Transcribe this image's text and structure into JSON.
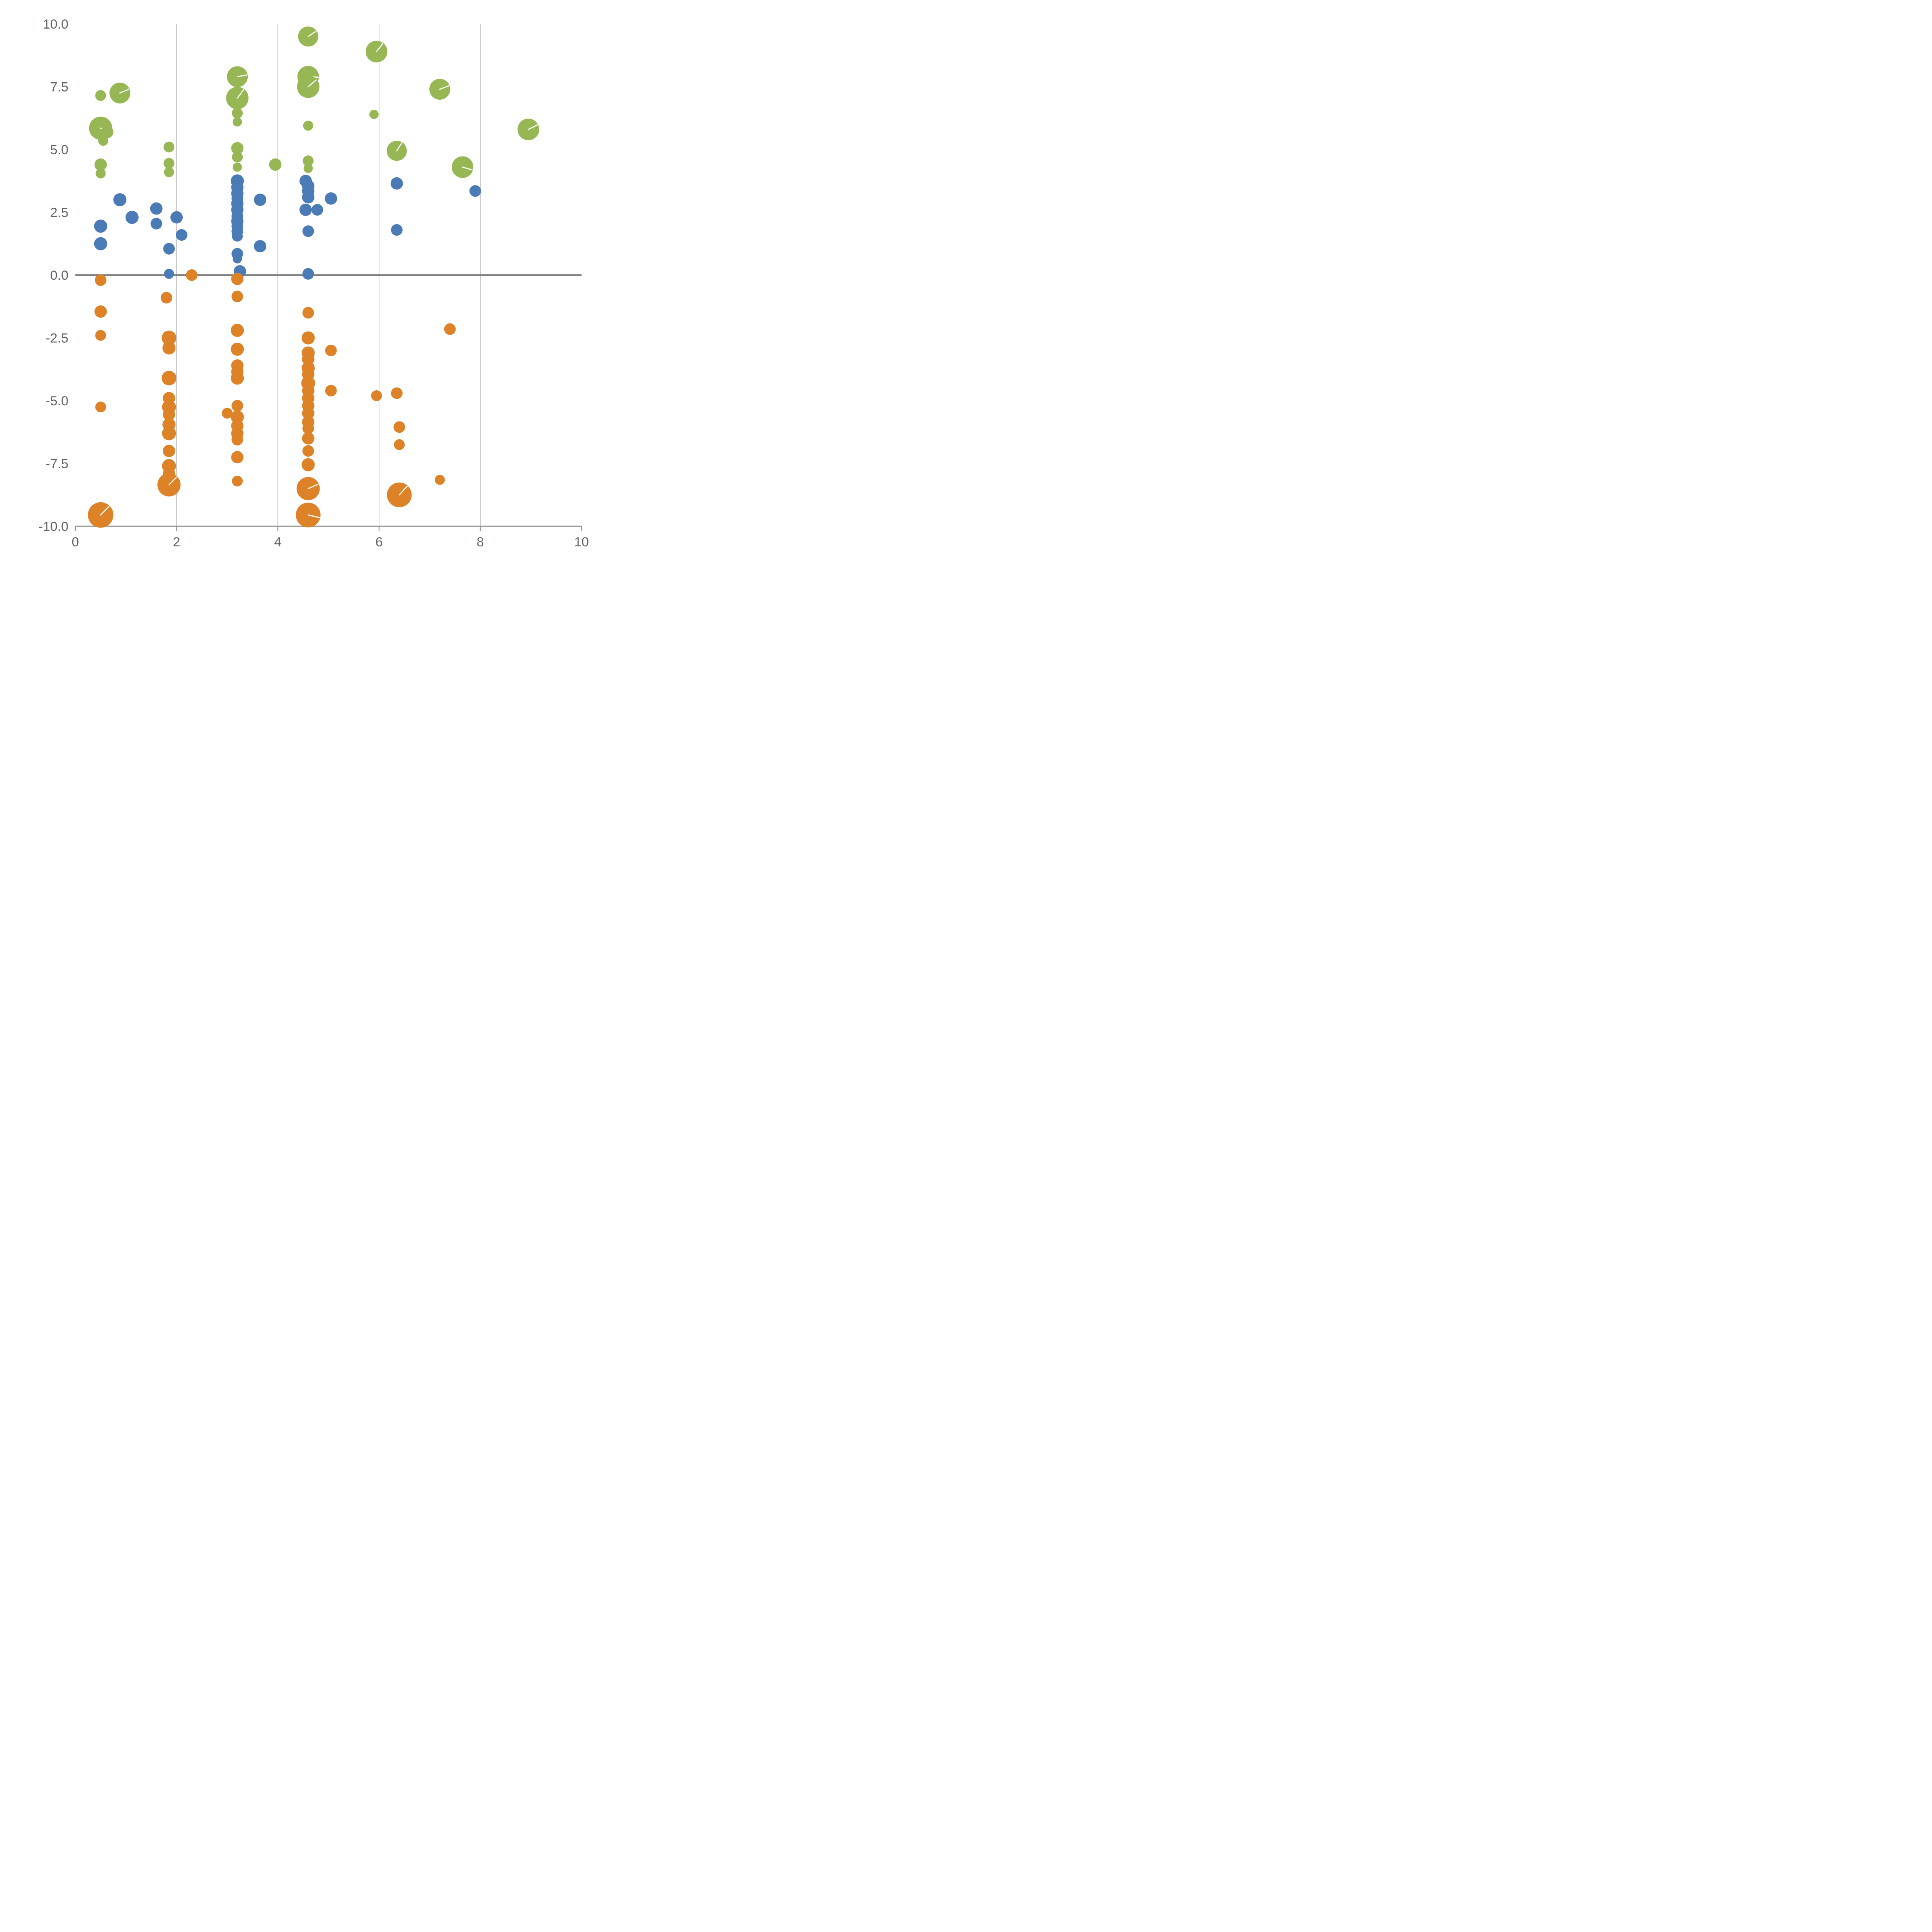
{
  "chart_data": {
    "type": "scatter",
    "title": "",
    "xlabel": "",
    "ylabel": "",
    "xlim": [
      0,
      10
    ],
    "ylim": [
      -10,
      10
    ],
    "grid": "vertical-only",
    "legend": "none",
    "x_ticks": [
      {
        "value": 0,
        "label": "0"
      },
      {
        "value": 2,
        "label": "2"
      },
      {
        "value": 4,
        "label": "4"
      },
      {
        "value": 6,
        "label": "6"
      },
      {
        "value": 8,
        "label": "8"
      },
      {
        "value": 10,
        "label": "10"
      }
    ],
    "y_ticks": [
      {
        "value": -10,
        "label": "-10.0"
      },
      {
        "value": -7.5,
        "label": "-7.5"
      },
      {
        "value": -5,
        "label": "-5.0"
      },
      {
        "value": -2.5,
        "label": "-2.5"
      },
      {
        "value": 0,
        "label": "0.0"
      },
      {
        "value": 2.5,
        "label": "2.5"
      },
      {
        "value": 5,
        "label": "5.0"
      },
      {
        "value": 7.5,
        "label": "7.5"
      },
      {
        "value": 10,
        "label": "10.0"
      }
    ],
    "vertical_gridlines_at": [
      2,
      4,
      6,
      8
    ],
    "zero_line": {
      "y": 0,
      "color": "#808080"
    },
    "colors": {
      "axis": "#9a9a9a",
      "grid": "#c9c9c9",
      "tick_text": "#5f6368",
      "background": "#ffffff"
    },
    "point_format": "[x, y, marker_radius_px]",
    "series": [
      {
        "name": "green",
        "color": "#96b754",
        "points": [
          [
            0.5,
            7.15,
            14
          ],
          [
            0.88,
            7.25,
            27
          ],
          [
            0.5,
            5.85,
            30
          ],
          [
            0.63,
            5.7,
            16
          ],
          [
            0.55,
            5.35,
            13
          ],
          [
            0.5,
            4.4,
            16
          ],
          [
            0.5,
            4.05,
            13
          ],
          [
            1.85,
            5.1,
            14
          ],
          [
            1.85,
            4.45,
            14
          ],
          [
            1.85,
            4.1,
            13
          ],
          [
            3.2,
            7.9,
            27
          ],
          [
            3.2,
            7.05,
            29
          ],
          [
            3.2,
            6.45,
            14
          ],
          [
            3.2,
            6.1,
            12
          ],
          [
            3.2,
            5.05,
            16
          ],
          [
            3.2,
            4.7,
            14
          ],
          [
            3.2,
            4.3,
            12
          ],
          [
            3.95,
            4.4,
            16
          ],
          [
            4.6,
            9.5,
            26
          ],
          [
            4.6,
            7.9,
            28
          ],
          [
            4.6,
            7.5,
            29
          ],
          [
            4.6,
            5.95,
            13
          ],
          [
            4.6,
            4.55,
            14
          ],
          [
            4.6,
            4.25,
            12
          ],
          [
            5.95,
            8.9,
            28
          ],
          [
            5.9,
            6.4,
            12
          ],
          [
            6.35,
            4.95,
            26
          ],
          [
            7.2,
            7.4,
            27
          ],
          [
            7.65,
            4.3,
            28
          ],
          [
            8.95,
            5.8,
            28
          ]
        ]
      },
      {
        "name": "blue",
        "color": "#4a7bb7",
        "points": [
          [
            0.5,
            1.95,
            17
          ],
          [
            0.5,
            1.25,
            17
          ],
          [
            0.88,
            3.0,
            17
          ],
          [
            1.12,
            2.3,
            17
          ],
          [
            1.6,
            2.65,
            16
          ],
          [
            1.6,
            2.05,
            15
          ],
          [
            1.85,
            1.05,
            15
          ],
          [
            1.85,
            0.05,
            13
          ],
          [
            2.0,
            2.3,
            16
          ],
          [
            2.1,
            1.6,
            15
          ],
          [
            3.2,
            3.75,
            17
          ],
          [
            3.2,
            3.5,
            16
          ],
          [
            3.2,
            3.25,
            16
          ],
          [
            3.2,
            3.05,
            15
          ],
          [
            3.2,
            2.85,
            16
          ],
          [
            3.2,
            2.6,
            16
          ],
          [
            3.2,
            2.35,
            15
          ],
          [
            3.2,
            2.15,
            16
          ],
          [
            3.2,
            1.95,
            15
          ],
          [
            3.2,
            1.75,
            15
          ],
          [
            3.2,
            1.55,
            14
          ],
          [
            3.2,
            0.85,
            15
          ],
          [
            3.2,
            0.65,
            12
          ],
          [
            3.25,
            0.15,
            16
          ],
          [
            3.65,
            3.0,
            16
          ],
          [
            3.65,
            1.15,
            16
          ],
          [
            4.55,
            3.75,
            16
          ],
          [
            4.6,
            3.55,
            16
          ],
          [
            4.6,
            3.35,
            16
          ],
          [
            4.6,
            3.1,
            16
          ],
          [
            4.55,
            2.6,
            16
          ],
          [
            4.78,
            2.6,
            15
          ],
          [
            4.6,
            1.75,
            15
          ],
          [
            4.6,
            0.05,
            15
          ],
          [
            5.05,
            3.05,
            16
          ],
          [
            6.35,
            3.65,
            16
          ],
          [
            6.35,
            1.8,
            15
          ],
          [
            7.9,
            3.35,
            15
          ]
        ]
      },
      {
        "name": "orange",
        "color": "#dd8227",
        "points": [
          [
            0.5,
            -0.2,
            15
          ],
          [
            0.5,
            -1.45,
            16
          ],
          [
            0.5,
            -2.4,
            14
          ],
          [
            0.5,
            -5.25,
            14
          ],
          [
            0.5,
            -9.55,
            33
          ],
          [
            1.8,
            -0.9,
            15
          ],
          [
            1.85,
            -2.5,
            19
          ],
          [
            1.85,
            -2.9,
            17
          ],
          [
            1.85,
            -4.1,
            19
          ],
          [
            1.85,
            -4.9,
            16
          ],
          [
            1.85,
            -5.25,
            18
          ],
          [
            1.85,
            -5.55,
            16
          ],
          [
            1.85,
            -5.95,
            17
          ],
          [
            1.85,
            -6.3,
            18
          ],
          [
            1.85,
            -7.0,
            16
          ],
          [
            1.85,
            -7.6,
            18
          ],
          [
            1.85,
            -7.9,
            16
          ],
          [
            1.85,
            -8.35,
            30
          ],
          [
            2.3,
            0.0,
            15
          ],
          [
            3.2,
            -0.15,
            16
          ],
          [
            3.2,
            -0.85,
            15
          ],
          [
            3.2,
            -2.2,
            17
          ],
          [
            3.2,
            -2.95,
            17
          ],
          [
            3.2,
            -3.6,
            16
          ],
          [
            3.2,
            -3.85,
            16
          ],
          [
            3.2,
            -4.1,
            17
          ],
          [
            3.0,
            -5.5,
            14
          ],
          [
            3.2,
            -5.2,
            15
          ],
          [
            3.2,
            -5.65,
            17
          ],
          [
            3.2,
            -6.0,
            16
          ],
          [
            3.2,
            -6.3,
            16
          ],
          [
            3.2,
            -6.55,
            15
          ],
          [
            3.2,
            -7.25,
            16
          ],
          [
            3.2,
            -8.2,
            14
          ],
          [
            4.6,
            -1.5,
            15
          ],
          [
            4.6,
            -2.5,
            17
          ],
          [
            4.6,
            -3.1,
            17
          ],
          [
            4.6,
            -3.35,
            16
          ],
          [
            4.6,
            -3.7,
            17
          ],
          [
            4.6,
            -3.95,
            16
          ],
          [
            4.6,
            -4.3,
            18
          ],
          [
            4.6,
            -4.6,
            16
          ],
          [
            4.6,
            -4.9,
            16
          ],
          [
            4.6,
            -5.2,
            16
          ],
          [
            4.6,
            -5.5,
            16
          ],
          [
            4.6,
            -5.85,
            16
          ],
          [
            4.6,
            -6.1,
            15
          ],
          [
            4.6,
            -6.5,
            16
          ],
          [
            4.6,
            -7.0,
            15
          ],
          [
            4.6,
            -7.55,
            17
          ],
          [
            4.6,
            -8.5,
            30
          ],
          [
            4.6,
            -9.55,
            32
          ],
          [
            5.05,
            -3.0,
            15
          ],
          [
            5.05,
            -4.6,
            15
          ],
          [
            5.95,
            -4.8,
            14
          ],
          [
            6.35,
            -4.7,
            15
          ],
          [
            6.4,
            -6.05,
            15
          ],
          [
            6.4,
            -6.75,
            14
          ],
          [
            6.4,
            -8.75,
            32
          ],
          [
            7.2,
            -8.15,
            13
          ],
          [
            7.4,
            -2.15,
            15
          ]
        ]
      }
    ]
  }
}
